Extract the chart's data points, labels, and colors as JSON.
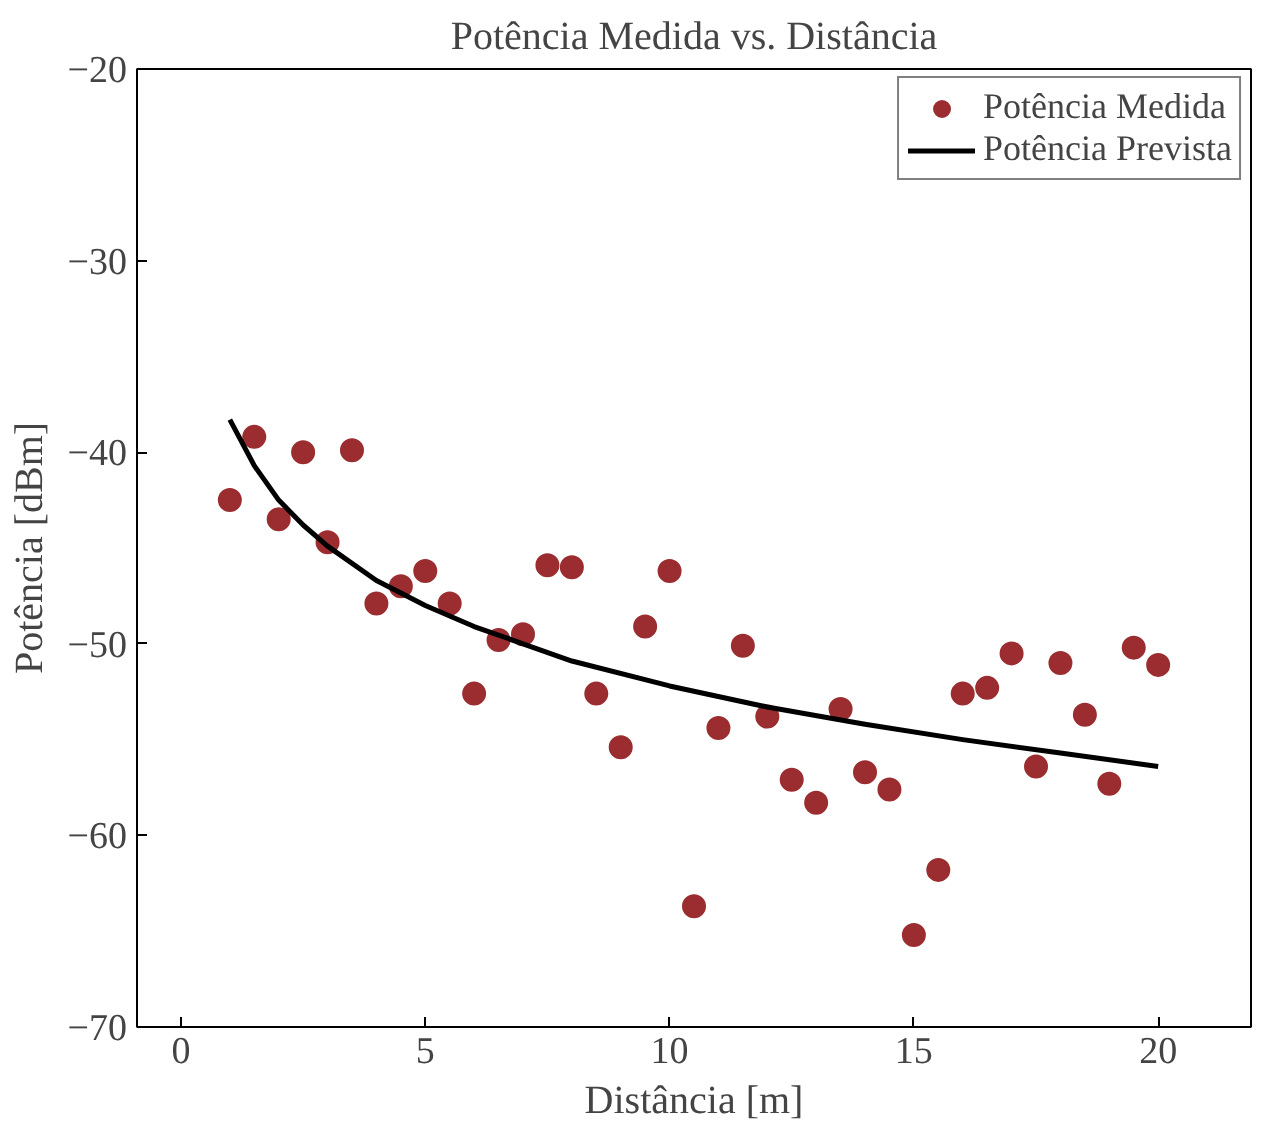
{
  "chart_data": {
    "type": "scatter",
    "title": "Potência Medida vs. Distância",
    "xlabel": "Distância [m]",
    "ylabel": "Potência [dBm]",
    "xlim": [
      -0.9,
      21.9
    ],
    "ylim": [
      -70,
      -20
    ],
    "xticks": [
      0,
      5,
      10,
      15,
      20
    ],
    "yticks": [
      -70,
      -60,
      -50,
      -40,
      -30,
      -20
    ],
    "grid": false,
    "legend": "top right",
    "series": [
      {
        "name": "Potência Medida",
        "marker": "circle",
        "color": "#9b2d30",
        "x": [
          1,
          1.5,
          2,
          2.5,
          3,
          3.5,
          4,
          4.5,
          5,
          5.5,
          6,
          6.5,
          7,
          7.5,
          8,
          8.5,
          9,
          9.5,
          10,
          10.5,
          11,
          11.5,
          12,
          12.5,
          13,
          13.5,
          14,
          14.5,
          15,
          15.5,
          16,
          16.5,
          17,
          17.5,
          18,
          18.5,
          19,
          19.5,
          20
        ],
        "values": [
          -42.5,
          -39.2,
          -43.5,
          -40.0,
          -44.7,
          -39.9,
          -47.9,
          -47.0,
          -46.2,
          -47.9,
          -52.6,
          -49.8,
          -49.5,
          -45.9,
          -46.0,
          -52.6,
          -55.4,
          -49.1,
          -46.2,
          -63.7,
          -54.4,
          -50.1,
          -53.8,
          -57.1,
          -58.3,
          -53.4,
          -56.7,
          -57.6,
          -65.2,
          -61.8,
          -52.6,
          -52.3,
          -50.5,
          -56.4,
          -51.0,
          -53.7,
          -57.3,
          -50.2,
          -51.1
        ]
      },
      {
        "name": "Potência Prevista",
        "type": "line",
        "marker": "none",
        "line_style": "solid",
        "color": "#000000",
        "x": [
          1,
          1.5,
          2,
          2.5,
          3,
          4,
          5,
          6,
          7,
          8,
          10,
          12,
          14,
          16,
          18,
          20
        ],
        "values": [
          -38.3,
          -40.7,
          -42.5,
          -43.8,
          -44.9,
          -46.7,
          -48.0,
          -49.1,
          -50.0,
          -50.9,
          -52.2,
          -53.3,
          -54.2,
          -55.0,
          -55.7,
          -56.4
        ]
      }
    ]
  }
}
